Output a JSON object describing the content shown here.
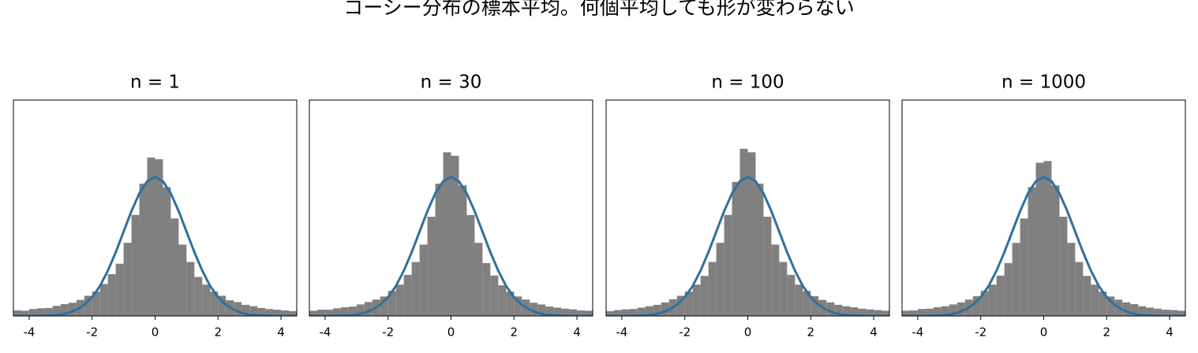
{
  "title": "コーシー分布の標本平均。何個平均しても形が変わらない",
  "chart_data": [
    {
      "type": "histogram",
      "title": "n = 1",
      "bins": [
        -4.5,
        -4.25,
        -4,
        -3.75,
        -3.5,
        -3.25,
        -3,
        -2.75,
        -2.5,
        -2.25,
        -2,
        -1.75,
        -1.5,
        -1.25,
        -1,
        -0.75,
        -0.5,
        -0.25,
        0,
        0.25,
        0.5,
        0.75,
        1,
        1.25,
        1.5,
        1.75,
        2,
        2.25,
        2.5,
        2.75,
        3,
        3.25,
        3.5,
        3.75,
        4,
        4.25,
        4.5
      ],
      "values": [
        0.016,
        0.015,
        0.02,
        0.022,
        0.023,
        0.029,
        0.034,
        0.038,
        0.046,
        0.058,
        0.07,
        0.092,
        0.12,
        0.15,
        0.21,
        0.29,
        0.38,
        0.455,
        0.45,
        0.37,
        0.28,
        0.205,
        0.155,
        0.112,
        0.09,
        0.07,
        0.058,
        0.045,
        0.04,
        0.032,
        0.028,
        0.023,
        0.02,
        0.018,
        0.016,
        0.014
      ],
      "color": "#808080",
      "line": {
        "x": [
          -4.5,
          -4.25,
          -4,
          -3.75,
          -3.5,
          -3.25,
          -3,
          -2.75,
          -2.5,
          -2.25,
          -2,
          -1.75,
          -1.5,
          -1.25,
          -1,
          -0.75,
          -0.5,
          -0.25,
          0,
          0.25,
          0.5,
          0.75,
          1,
          1.25,
          1.5,
          1.75,
          2,
          2.25,
          2.5,
          2.75,
          3,
          3.25,
          3.5,
          3.75,
          4,
          4.25,
          4.5
        ],
        "values": [
          2e-05,
          5e-05,
          0.0001,
          0.0004,
          0.001,
          0.002,
          0.004,
          0.009,
          0.018,
          0.032,
          0.054,
          0.086,
          0.13,
          0.183,
          0.242,
          0.301,
          0.352,
          0.387,
          0.399,
          0.387,
          0.352,
          0.301,
          0.242,
          0.183,
          0.13,
          0.086,
          0.054,
          0.032,
          0.018,
          0.009,
          0.004,
          0.002,
          0.001,
          0.0004,
          0.0001,
          5e-05,
          2e-05
        ],
        "color": "#30709c"
      },
      "xlim": [
        -4.5,
        4.5
      ],
      "ylim": [
        0,
        0.62
      ],
      "xticks": [
        -4,
        -2,
        0,
        2,
        4
      ]
    },
    {
      "type": "histogram",
      "title": "n = 30",
      "bins": [
        -4.5,
        -4.25,
        -4,
        -3.75,
        -3.5,
        -3.25,
        -3,
        -2.75,
        -2.5,
        -2.25,
        -2,
        -1.75,
        -1.5,
        -1.25,
        -1,
        -0.75,
        -0.5,
        -0.25,
        0,
        0.25,
        0.5,
        0.75,
        1,
        1.25,
        1.5,
        1.75,
        2,
        2.25,
        2.5,
        2.75,
        3,
        3.25,
        3.5,
        3.75,
        4,
        4.25,
        4.5
      ],
      "values": [
        0.015,
        0.018,
        0.018,
        0.022,
        0.025,
        0.027,
        0.033,
        0.04,
        0.047,
        0.056,
        0.072,
        0.09,
        0.118,
        0.155,
        0.205,
        0.285,
        0.38,
        0.47,
        0.46,
        0.375,
        0.29,
        0.21,
        0.152,
        0.116,
        0.088,
        0.07,
        0.056,
        0.047,
        0.038,
        0.033,
        0.027,
        0.024,
        0.021,
        0.019,
        0.016,
        0.015
      ],
      "color": "#808080",
      "line": {
        "x": [
          -4.5,
          -4.25,
          -4,
          -3.75,
          -3.5,
          -3.25,
          -3,
          -2.75,
          -2.5,
          -2.25,
          -2,
          -1.75,
          -1.5,
          -1.25,
          -1,
          -0.75,
          -0.5,
          -0.25,
          0,
          0.25,
          0.5,
          0.75,
          1,
          1.25,
          1.5,
          1.75,
          2,
          2.25,
          2.5,
          2.75,
          3,
          3.25,
          3.5,
          3.75,
          4,
          4.25,
          4.5
        ],
        "values": [
          2e-05,
          5e-05,
          0.0001,
          0.0004,
          0.001,
          0.002,
          0.004,
          0.009,
          0.018,
          0.032,
          0.054,
          0.086,
          0.13,
          0.183,
          0.242,
          0.301,
          0.352,
          0.387,
          0.399,
          0.387,
          0.352,
          0.301,
          0.242,
          0.183,
          0.13,
          0.086,
          0.054,
          0.032,
          0.018,
          0.009,
          0.004,
          0.002,
          0.001,
          0.0004,
          0.0001,
          5e-05,
          2e-05
        ],
        "color": "#30709c"
      },
      "xlim": [
        -4.5,
        4.5
      ],
      "ylim": [
        0,
        0.62
      ],
      "xticks": [
        -4,
        -2,
        0,
        2,
        4
      ]
    },
    {
      "type": "histogram",
      "title": "n = 100",
      "bins": [
        -4.5,
        -4.25,
        -4,
        -3.75,
        -3.5,
        -3.25,
        -3,
        -2.75,
        -2.5,
        -2.25,
        -2,
        -1.75,
        -1.5,
        -1.25,
        -1,
        -0.75,
        -0.5,
        -0.25,
        0,
        0.25,
        0.5,
        0.75,
        1,
        1.25,
        1.5,
        1.75,
        2,
        2.25,
        2.5,
        2.75,
        3,
        3.25,
        3.5,
        3.75,
        4,
        4.25,
        4.5
      ],
      "values": [
        0.014,
        0.017,
        0.019,
        0.02,
        0.024,
        0.028,
        0.032,
        0.039,
        0.048,
        0.058,
        0.07,
        0.09,
        0.115,
        0.155,
        0.21,
        0.29,
        0.385,
        0.48,
        0.47,
        0.38,
        0.285,
        0.205,
        0.155,
        0.118,
        0.09,
        0.072,
        0.057,
        0.046,
        0.039,
        0.032,
        0.028,
        0.025,
        0.021,
        0.019,
        0.017,
        0.015
      ],
      "color": "#808080",
      "line": {
        "x": [
          -4.5,
          -4.25,
          -4,
          -3.75,
          -3.5,
          -3.25,
          -3,
          -2.75,
          -2.5,
          -2.25,
          -2,
          -1.75,
          -1.5,
          -1.25,
          -1,
          -0.75,
          -0.5,
          -0.25,
          0,
          0.25,
          0.5,
          0.75,
          1,
          1.25,
          1.5,
          1.75,
          2,
          2.25,
          2.5,
          2.75,
          3,
          3.25,
          3.5,
          3.75,
          4,
          4.25,
          4.5
        ],
        "values": [
          2e-05,
          5e-05,
          0.0001,
          0.0004,
          0.001,
          0.002,
          0.004,
          0.009,
          0.018,
          0.032,
          0.054,
          0.086,
          0.13,
          0.183,
          0.242,
          0.301,
          0.352,
          0.387,
          0.399,
          0.387,
          0.352,
          0.301,
          0.242,
          0.183,
          0.13,
          0.086,
          0.054,
          0.032,
          0.018,
          0.009,
          0.004,
          0.002,
          0.001,
          0.0004,
          0.0001,
          5e-05,
          2e-05
        ],
        "color": "#30709c"
      },
      "xlim": [
        -4.5,
        4.5
      ],
      "ylim": [
        0,
        0.62
      ],
      "xticks": [
        -4,
        -2,
        0,
        2,
        4
      ]
    },
    {
      "type": "histogram",
      "title": "n = 1000",
      "bins": [
        -4.5,
        -4.25,
        -4,
        -3.75,
        -3.5,
        -3.25,
        -3,
        -2.75,
        -2.5,
        -2.25,
        -2,
        -1.75,
        -1.5,
        -1.25,
        -1,
        -0.75,
        -0.5,
        -0.25,
        0,
        0.25,
        0.5,
        0.75,
        1,
        1.25,
        1.5,
        1.75,
        2,
        2.25,
        2.5,
        2.75,
        3,
        3.25,
        3.5,
        3.75,
        4,
        4.25,
        4.5
      ],
      "values": [
        0.015,
        0.016,
        0.02,
        0.021,
        0.025,
        0.028,
        0.033,
        0.039,
        0.047,
        0.057,
        0.072,
        0.09,
        0.116,
        0.152,
        0.21,
        0.28,
        0.37,
        0.44,
        0.445,
        0.375,
        0.285,
        0.21,
        0.155,
        0.115,
        0.09,
        0.07,
        0.056,
        0.047,
        0.039,
        0.034,
        0.028,
        0.024,
        0.021,
        0.018,
        0.017,
        0.015
      ],
      "color": "#808080",
      "line": {
        "x": [
          -4.5,
          -4.25,
          -4,
          -3.75,
          -3.5,
          -3.25,
          -3,
          -2.75,
          -2.5,
          -2.25,
          -2,
          -1.75,
          -1.5,
          -1.25,
          -1,
          -0.75,
          -0.5,
          -0.25,
          0,
          0.25,
          0.5,
          0.75,
          1,
          1.25,
          1.5,
          1.75,
          2,
          2.25,
          2.5,
          2.75,
          3,
          3.25,
          3.5,
          3.75,
          4,
          4.25,
          4.5
        ],
        "values": [
          2e-05,
          5e-05,
          0.0001,
          0.0004,
          0.001,
          0.002,
          0.004,
          0.009,
          0.018,
          0.032,
          0.054,
          0.086,
          0.13,
          0.183,
          0.242,
          0.301,
          0.352,
          0.387,
          0.399,
          0.387,
          0.352,
          0.301,
          0.242,
          0.183,
          0.13,
          0.086,
          0.054,
          0.032,
          0.018,
          0.009,
          0.004,
          0.002,
          0.001,
          0.0004,
          0.0001,
          5e-05,
          2e-05
        ],
        "color": "#30709c"
      },
      "xlim": [
        -4.5,
        4.5
      ],
      "ylim": [
        0,
        0.62
      ],
      "xticks": [
        -4,
        -2,
        0,
        2,
        4
      ]
    }
  ]
}
